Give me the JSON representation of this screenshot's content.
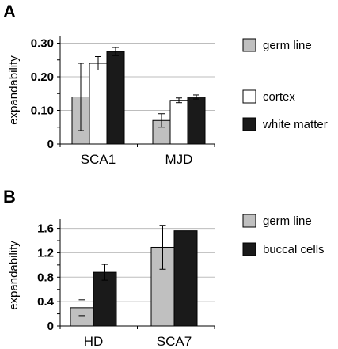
{
  "chart_data": [
    {
      "panel": "A",
      "type": "bar",
      "ylabel": "expandability",
      "ylim": [
        0,
        0.32
      ],
      "yticks": [
        0,
        0.1,
        0.2,
        0.3
      ],
      "ytick_labels": [
        "0",
        "0.10",
        "0.20",
        "0.30"
      ],
      "categories": [
        "SCA1",
        "MJD"
      ],
      "series": [
        {
          "name": "germ line",
          "color": "#c0c0c0",
          "values": [
            0.14,
            0.07
          ],
          "errors": [
            0.1,
            0.02
          ]
        },
        {
          "name": "cortex",
          "color": "#ffffff",
          "values": [
            0.24,
            0.13
          ],
          "errors": [
            0.02,
            0.007
          ]
        },
        {
          "name": "white matter",
          "color": "#1a1a1a",
          "values": [
            0.275,
            0.14
          ],
          "errors": [
            0.012,
            0.006
          ]
        }
      ],
      "legend_position": "right"
    },
    {
      "panel": "B",
      "type": "bar",
      "ylabel": "expandability",
      "ylim": [
        0,
        1.75
      ],
      "yticks": [
        0,
        0.4,
        0.8,
        1.2,
        1.6
      ],
      "ytick_labels": [
        "0",
        "0.4",
        "0.8",
        "1.2",
        "1.6"
      ],
      "categories": [
        "HD",
        "SCA7"
      ],
      "series": [
        {
          "name": "germ line",
          "color": "#c0c0c0",
          "values": [
            0.3,
            1.29
          ],
          "errors": [
            0.13,
            0.36
          ]
        },
        {
          "name": "buccal cells",
          "color": "#1a1a1a",
          "values": [
            0.88,
            1.56
          ],
          "errors": [
            0.13,
            null
          ]
        }
      ],
      "legend_position": "right"
    }
  ]
}
